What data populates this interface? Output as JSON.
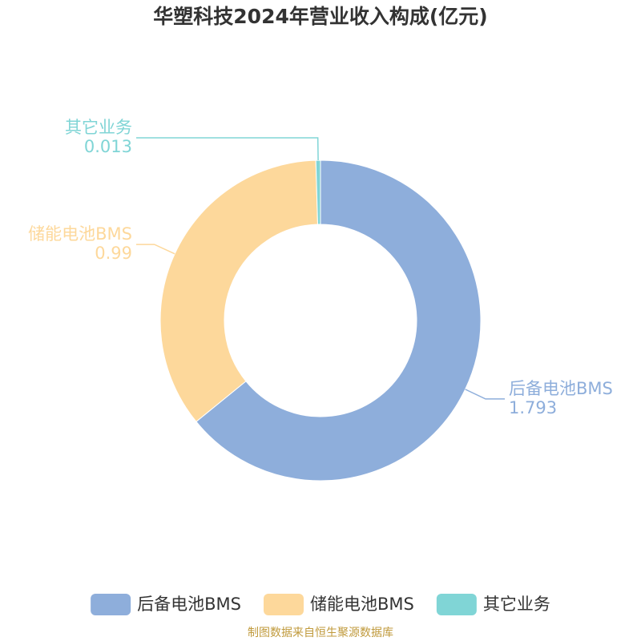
{
  "chart_data": {
    "type": "pie",
    "donut": true,
    "title": "华塑科技2024年营业收入构成(亿元)",
    "categories": [
      "后备电池BMS",
      "储能电池BMS",
      "其它业务"
    ],
    "values": [
      1.793,
      0.99,
      0.013
    ],
    "colors": [
      "#8eaedb",
      "#fdd89b",
      "#80d5d6"
    ],
    "source": "制图数据来自恒生聚源数据库"
  }
}
